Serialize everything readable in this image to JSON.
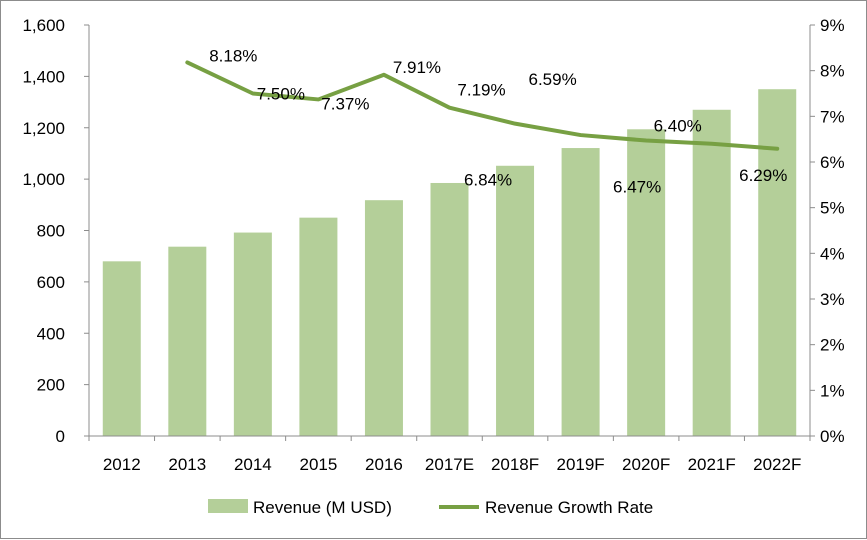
{
  "chart_data": {
    "type": "bar",
    "categories": [
      "2012",
      "2013",
      "2014",
      "2015",
      "2016",
      "2017E",
      "2018F",
      "2019F",
      "2020F",
      "2021F",
      "2022F"
    ],
    "series": [
      {
        "name": "Revenue (M USD)",
        "type": "bar",
        "axis": "left",
        "color": "#b4cf99",
        "values": [
          680,
          737,
          792,
          850,
          918,
          985,
          1052,
          1121,
          1194,
          1270,
          1350
        ]
      },
      {
        "name": "Revenue Growth Rate",
        "type": "line",
        "axis": "right",
        "color": "#77a043",
        "values": [
          null,
          8.18,
          7.5,
          7.37,
          7.91,
          7.19,
          6.84,
          6.59,
          6.47,
          6.4,
          6.29
        ],
        "labels": [
          "",
          "8.18%",
          "7.50%",
          "7.37%",
          "7.91%",
          "7.19%",
          "6.84%",
          "6.59%",
          "6.47%",
          "6.40%",
          "6.29%"
        ]
      }
    ],
    "y_left": {
      "range": [
        0,
        1600
      ],
      "ticks": [
        "0",
        "200",
        "400",
        "600",
        "800",
        "1,000",
        "1,200",
        "1,400",
        "1,600"
      ]
    },
    "y_right": {
      "range": [
        0,
        9
      ],
      "ticks": [
        "0%",
        "1%",
        "2%",
        "3%",
        "4%",
        "5%",
        "6%",
        "7%",
        "8%",
        "9%"
      ]
    },
    "grid": false,
    "legend_position": "bottom"
  }
}
